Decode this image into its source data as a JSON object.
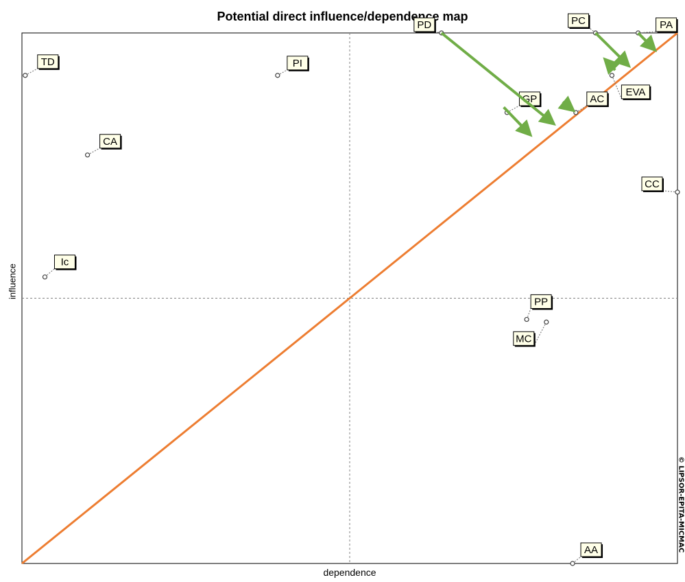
{
  "chart_data": {
    "type": "scatter",
    "title": "Potential direct influence/dependence map",
    "xlabel": "dependence",
    "ylabel": "influence",
    "watermark": "© LIPSOR-EPITA-MICMAC",
    "grid": false,
    "xlim": [
      0,
      100
    ],
    "ylim": [
      0,
      100
    ],
    "median_lines": {
      "x": 50,
      "y": 50
    },
    "points": [
      {
        "label": "TD",
        "x": 0.5,
        "y": 92
      },
      {
        "label": "PI",
        "x": 39,
        "y": 92
      },
      {
        "label": "PD",
        "x": 64,
        "y": 100
      },
      {
        "label": "PC",
        "x": 87.5,
        "y": 100
      },
      {
        "label": "PA",
        "x": 94,
        "y": 100
      },
      {
        "label": "EVA",
        "x": 90,
        "y": 92
      },
      {
        "label": "GP",
        "x": 74,
        "y": 85
      },
      {
        "label": "AC",
        "x": 84.5,
        "y": 85
      },
      {
        "label": "CA",
        "x": 10,
        "y": 77
      },
      {
        "label": "CC",
        "x": 100,
        "y": 70
      },
      {
        "label": "Ic",
        "x": 3.5,
        "y": 54
      },
      {
        "label": "PP",
        "x": 77,
        "y": 46
      },
      {
        "label": "MC",
        "x": 80,
        "y": 45.5
      },
      {
        "label": "AA",
        "x": 84,
        "y": 0
      }
    ],
    "diagonal_line": {
      "from": [
        0,
        0
      ],
      "to": [
        100,
        100
      ],
      "color": "#ED7D31"
    },
    "arrows": [
      {
        "from": [
          64,
          100
        ],
        "to": [
          80.5,
          83.5
        ]
      },
      {
        "from": [
          73.5,
          86
        ],
        "to": [
          77,
          81.5
        ]
      },
      {
        "from": [
          87.5,
          100
        ],
        "to": [
          92,
          94.5
        ]
      },
      {
        "from": [
          90.5,
          93
        ],
        "to": [
          89.5,
          94.3
        ]
      },
      {
        "from": [
          82.5,
          87
        ],
        "to": [
          83.5,
          86
        ]
      },
      {
        "from": [
          94,
          100
        ],
        "to": [
          96,
          97.5
        ]
      }
    ],
    "colors": {
      "arrow": "#70AD47",
      "diagonal": "#ED7D31",
      "axis_dash": "#808080",
      "label_bg": "#FFFFE8"
    }
  }
}
